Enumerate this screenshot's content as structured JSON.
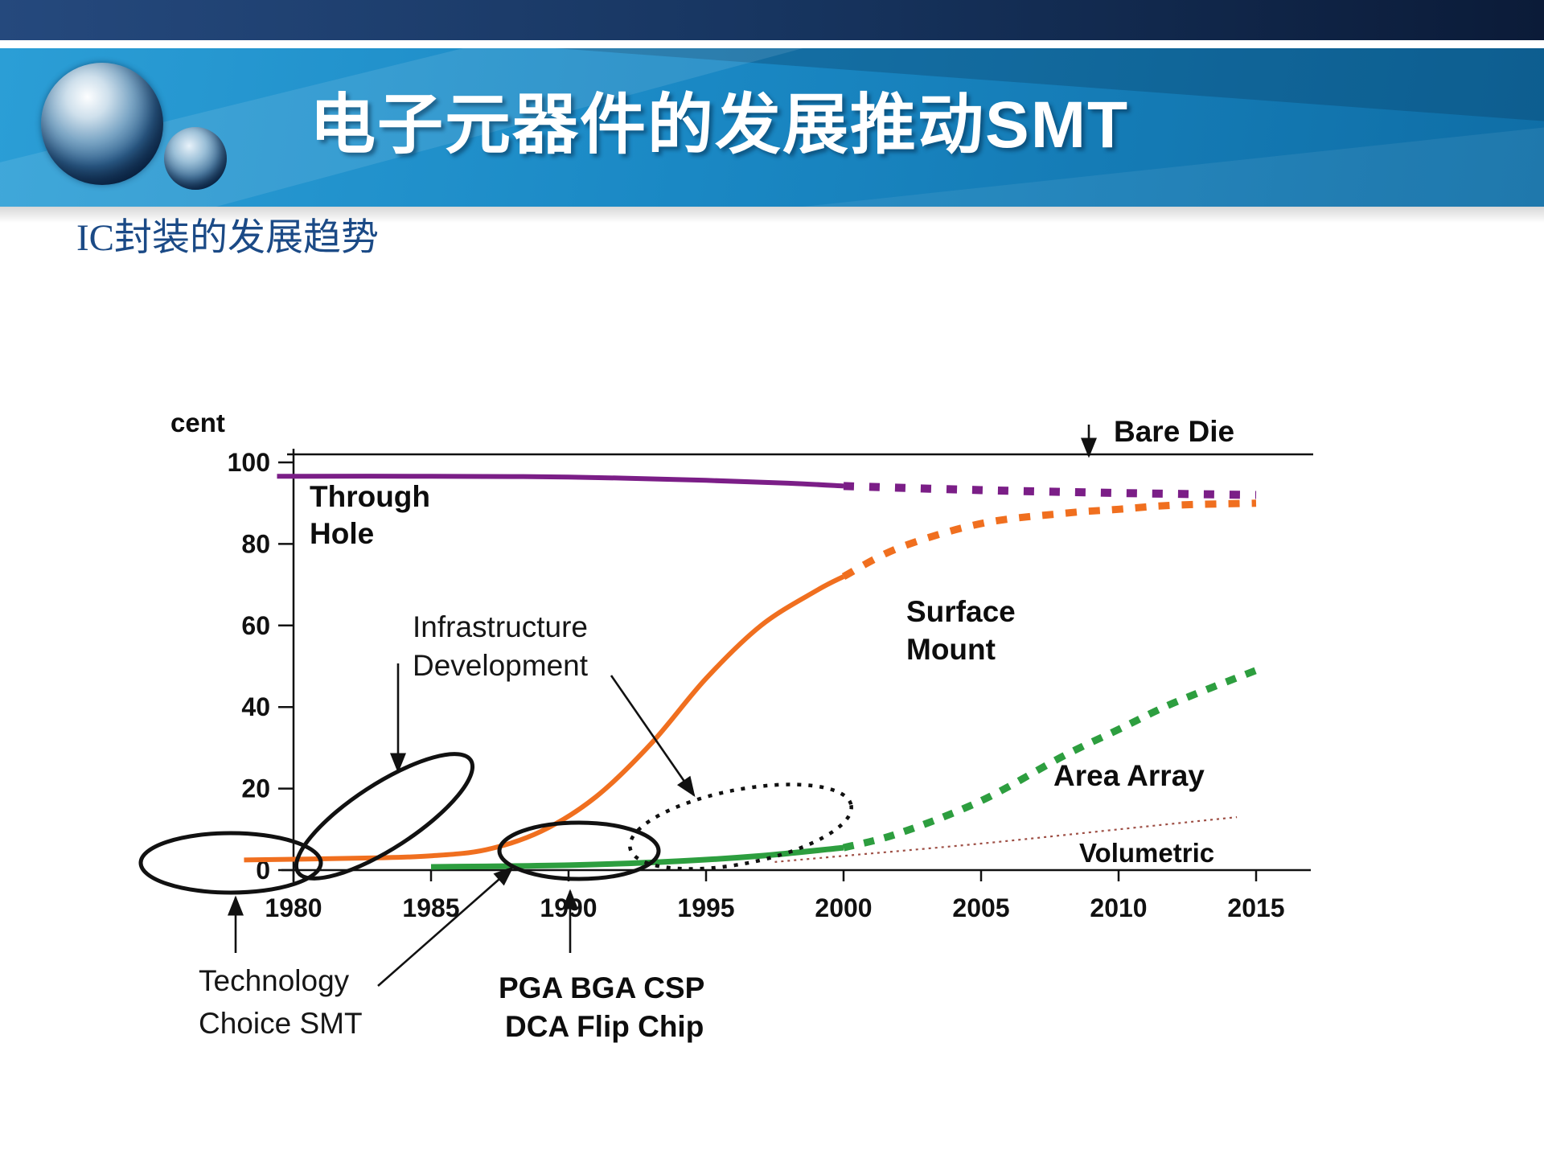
{
  "header": {
    "title": "电子元器件的发展推动SMT"
  },
  "subtitle": "IC封装的发展趋势",
  "colors": {
    "header_top_left": "#25497d",
    "header_top_right": "#0b1b38",
    "header_band": "#1a88c4",
    "subtitle_text": "#1b4a86",
    "through_hole": "#7b1e87",
    "surface_mount": "#f06f1f",
    "area_array": "#2d9e3f",
    "volumetric": "#9e4f45",
    "annotation": "#111111"
  },
  "chart_data": {
    "type": "line",
    "title": "",
    "y_axis_label_visible": "cent",
    "xlabel": "",
    "ylabel": "",
    "xticks": [
      1980,
      1985,
      1990,
      1995,
      2000,
      2005,
      2010,
      2015
    ],
    "yticks": [
      0,
      20,
      40,
      60,
      80,
      100
    ],
    "xlim": [
      1980,
      2015
    ],
    "ylim": [
      0,
      102
    ],
    "grid": false,
    "legend_position": "inline-labels",
    "series": [
      {
        "name": "Through Hole",
        "color": "#7b1e87",
        "solid_until": 2000,
        "points": [
          [
            1979.4,
            96.6
          ],
          [
            1985,
            96.6
          ],
          [
            1990,
            96.4
          ],
          [
            1995,
            95.6
          ],
          [
            1998,
            94.9
          ],
          [
            2000,
            94.2
          ],
          [
            2005,
            93.2
          ],
          [
            2010,
            92.5
          ],
          [
            2015,
            92.0
          ]
        ]
      },
      {
        "name": "Surface Mount",
        "color": "#f06f1f",
        "solid_until": 2000,
        "points": [
          [
            1978.2,
            2.5
          ],
          [
            1983,
            3
          ],
          [
            1985,
            3.5
          ],
          [
            1987,
            5
          ],
          [
            1989,
            9.5
          ],
          [
            1991,
            18
          ],
          [
            1993,
            31
          ],
          [
            1995,
            47
          ],
          [
            1997,
            60
          ],
          [
            1999,
            68.5
          ],
          [
            2000,
            72
          ],
          [
            2002,
            79
          ],
          [
            2005,
            85
          ],
          [
            2008,
            87.5
          ],
          [
            2010,
            88.5
          ],
          [
            2012,
            89.5
          ],
          [
            2015,
            90
          ]
        ]
      },
      {
        "name": "Area Array",
        "color": "#2d9e3f",
        "solid_until": 2000,
        "points": [
          [
            1985,
            0.8
          ],
          [
            1990,
            1.2
          ],
          [
            1994,
            2.2
          ],
          [
            1997,
            3.5
          ],
          [
            2000,
            5.5
          ],
          [
            2002,
            9
          ],
          [
            2005,
            17
          ],
          [
            2008,
            28
          ],
          [
            2010,
            34.5
          ],
          [
            2012,
            41
          ],
          [
            2015,
            49
          ]
        ]
      },
      {
        "name": "Volumetric",
        "color": "#9e4f45",
        "style": "dotted",
        "points": [
          [
            1997.5,
            2
          ],
          [
            2000,
            3.5
          ],
          [
            2005,
            6.5
          ],
          [
            2010,
            10
          ],
          [
            2014.3,
            13
          ]
        ]
      }
    ],
    "annotations": {
      "through_hole": [
        "Through",
        "Hole"
      ],
      "infrastructure": [
        "Infrastructure",
        "Development"
      ],
      "surface_mount": [
        "Surface",
        "Mount"
      ],
      "bare_die": "Bare Die",
      "area_array": "Area Array",
      "volumetric": "Volumetric",
      "technology": [
        "Technology",
        "Choice SMT"
      ],
      "pga": [
        "PGA BGA CSP",
        "DCA Flip Chip"
      ]
    }
  }
}
